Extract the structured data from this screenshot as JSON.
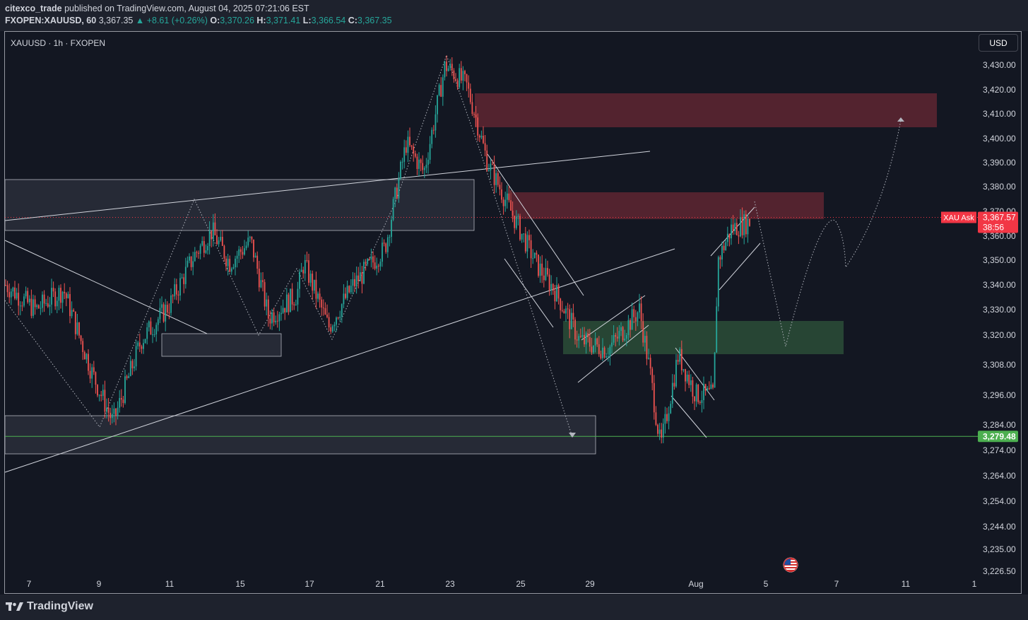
{
  "header": {
    "author": "citexco_trade",
    "published_text": "published on TradingView.com, August 04, 2025 07:21:06 EST",
    "symbol_full": "FXOPEN:XAUUSD, 60",
    "last_price": "3,367.35",
    "change": "▲ +8.61 (+0.26%)",
    "open_label": "O:",
    "open": "3,370.26",
    "high_label": "H:",
    "high": "3,371.41",
    "low_label": "L:",
    "low": "3,366.54",
    "close_label": "C:",
    "close": "3,367.35"
  },
  "chart_title": "XAUUSD · 1h · FXOPEN",
  "currency_button": "USD",
  "footer": {
    "brand": "TradingView"
  },
  "colors": {
    "background": "#131722",
    "up_candle": "#26a69a",
    "down_candle": "#ef5350",
    "supply_zone": "#5b2531",
    "demand_zone": "#2a4a36",
    "ask_tag": "#f23645",
    "support_line": "#4caf50"
  },
  "chart_data": {
    "type": "candlestick",
    "instrument": "XAUUSD",
    "timeframe": "1h",
    "ylim": [
      3226.5,
      3440
    ],
    "price_ticks": [
      "3,430.00",
      "3,420.00",
      "3,410.00",
      "3,400.00",
      "3,390.00",
      "3,380.00",
      "3,370.00",
      "3,360.00",
      "3,350.00",
      "3,340.00",
      "3,330.00",
      "3,320.00",
      "3,308.00",
      "3,296.00",
      "3,284.00",
      "3,274.00",
      "3,264.00",
      "3,254.00",
      "3,244.00",
      "3,235.00",
      "3,226.50"
    ],
    "price_tick_values": [
      3430,
      3420,
      3410,
      3400,
      3390,
      3380,
      3370,
      3360,
      3350,
      3340,
      3330,
      3320,
      3308,
      3296,
      3284,
      3274,
      3264,
      3254,
      3244,
      3235,
      3226.5
    ],
    "date_ticks": [
      "7",
      "9",
      "11",
      "15",
      "17",
      "21",
      "23",
      "25",
      "29",
      "Aug",
      "5",
      "7",
      "11",
      "1"
    ],
    "ask_label": "XAU Ask",
    "ask_price": "3,367.57",
    "countdown": "38:56",
    "support_price": "3,279.48",
    "ask_value": 3367.57,
    "support_value": 3279.48
  }
}
